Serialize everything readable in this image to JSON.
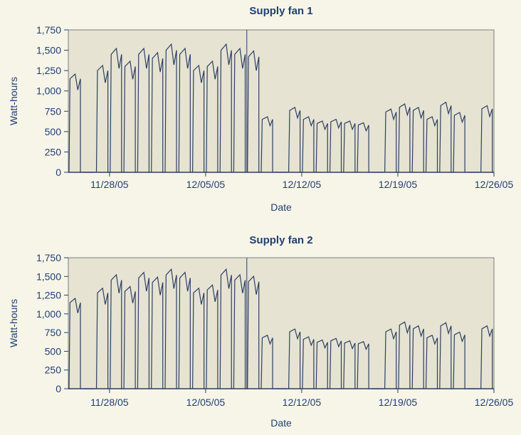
{
  "chart_data": [
    {
      "type": "line",
      "title": "Supply fan 1",
      "xlabel": "Date",
      "ylabel": "Watt-hours",
      "ylim": [
        0,
        1750
      ],
      "yticks": [
        "0",
        "250",
        "500",
        "750",
        "1,000",
        "1,250",
        "1,500",
        "1,750"
      ],
      "xlim": [
        "11/25/05",
        "12/26/05"
      ],
      "xticks": [
        "11/28/05",
        "12/05/05",
        "12/12/05",
        "12/19/05",
        "12/26/05"
      ],
      "grid": false,
      "background": "#e6e3d2",
      "line_color": "#2c3f63",
      "annotation": "vertical line at approx. 12/08/05",
      "series": [
        {
          "x": [
            "11/25/05",
            "11/26/05",
            "11/27/05",
            "11/28/05",
            "11/29/05",
            "11/30/05",
            "12/01/05",
            "12/02/05",
            "12/03/05",
            "12/04/05",
            "12/05/05",
            "12/06/05",
            "12/07/05",
            "12/08/05",
            "12/09/05",
            "12/10/05",
            "12/11/05",
            "12/12/05",
            "12/13/05",
            "12/14/05",
            "12/15/05",
            "12/16/05",
            "12/17/05",
            "12/18/05",
            "12/19/05",
            "12/20/05",
            "12/21/05",
            "12/22/05",
            "12/23/05",
            "12/24/05",
            "12/25/05"
          ],
          "y": [
            1150,
            0,
            1250,
            1450,
            1300,
            1450,
            1400,
            1500,
            1450,
            1250,
            1300,
            1500,
            1450,
            1420,
            650,
            0,
            760,
            650,
            600,
            620,
            600,
            580,
            0,
            740,
            800,
            760,
            650,
            820,
            700,
            0,
            780
          ]
        }
      ]
    },
    {
      "type": "line",
      "title": "Supply fan 2",
      "xlabel": "Date",
      "ylabel": "Watt-hours",
      "ylim": [
        0,
        1750
      ],
      "yticks": [
        "0",
        "250",
        "500",
        "750",
        "1,000",
        "1,250",
        "1,500",
        "1,750"
      ],
      "xlim": [
        "11/25/05",
        "12/26/05"
      ],
      "xticks": [
        "11/28/05",
        "12/05/05",
        "12/12/05",
        "12/19/05",
        "12/26/05"
      ],
      "grid": false,
      "background": "#e6e3d2",
      "line_color": "#2c3f63",
      "annotation": "vertical line at approx. 12/08/05",
      "series": [
        {
          "x": [
            "11/25/05",
            "11/26/05",
            "11/27/05",
            "11/28/05",
            "11/29/05",
            "11/30/05",
            "12/01/05",
            "12/02/05",
            "12/03/05",
            "12/04/05",
            "12/05/05",
            "12/06/05",
            "12/07/05",
            "12/08/05",
            "12/09/05",
            "12/10/05",
            "12/11/05",
            "12/12/05",
            "12/13/05",
            "12/14/05",
            "12/15/05",
            "12/16/05",
            "12/17/05",
            "12/18/05",
            "12/19/05",
            "12/20/05",
            "12/21/05",
            "12/22/05",
            "12/23/05",
            "12/24/05",
            "12/25/05"
          ],
          "y": [
            1150,
            0,
            1280,
            1450,
            1300,
            1480,
            1420,
            1520,
            1480,
            1280,
            1320,
            1520,
            1450,
            1430,
            680,
            0,
            760,
            660,
            620,
            640,
            610,
            600,
            0,
            760,
            850,
            800,
            680,
            840,
            720,
            0,
            800
          ]
        }
      ]
    }
  ]
}
